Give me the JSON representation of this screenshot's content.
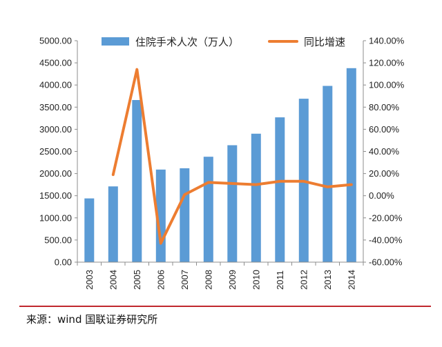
{
  "chart_data": {
    "type": "bar+line",
    "categories": [
      "2003",
      "2004",
      "2005",
      "2006",
      "2007",
      "2008",
      "2009",
      "2010",
      "2011",
      "2012",
      "2013",
      "2014"
    ],
    "series": [
      {
        "name": "住院手术人次（万人）",
        "type": "bar",
        "axis": "left",
        "values": [
          1440,
          1710,
          3660,
          2090,
          2120,
          2380,
          2640,
          2900,
          3270,
          3690,
          3980,
          4380
        ]
      },
      {
        "name": "同比增速",
        "type": "line",
        "axis": "right",
        "values": [
          null,
          0.19,
          1.14,
          -0.43,
          0.01,
          0.12,
          0.11,
          0.1,
          0.13,
          0.13,
          0.08,
          0.1
        ]
      }
    ],
    "y_left": {
      "ticks": [
        "0.00",
        "500.00",
        "1000.00",
        "1500.00",
        "2000.00",
        "2500.00",
        "3000.00",
        "3500.00",
        "4000.00",
        "4500.00",
        "5000.00"
      ],
      "ylim": [
        0,
        5000
      ]
    },
    "y_right": {
      "ticks": [
        "-60.00%",
        "-40.00%",
        "-20.00%",
        "0.00%",
        "20.00%",
        "40.00%",
        "60.00%",
        "80.00%",
        "100.00%",
        "120.00%",
        "140.00%"
      ],
      "ylim": [
        -0.6,
        1.4
      ]
    },
    "grid": false,
    "legend_position": "top",
    "colors": {
      "bar": "#5b9bd5",
      "line": "#ed7d31"
    }
  },
  "source": "来源：wind 国联证券研究所"
}
